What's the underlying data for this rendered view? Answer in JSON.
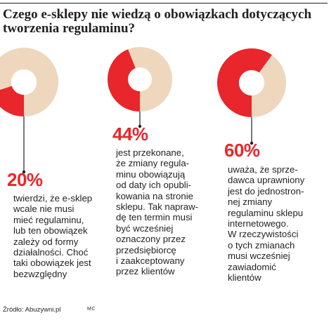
{
  "title": "Czego e-sklepy nie wiedzą o obowiązkach dotyczących tworzenia regulaminu?",
  "colors": {
    "accent": "#e8262b",
    "rest": "#eed7bd",
    "text": "#231f20"
  },
  "chart_data": {
    "type": "pie",
    "charts": [
      {
        "value": 20,
        "label": "20%",
        "text": "twierdzi, że e-sklep\nwcale nie musi\nmieć regulaminu,\nlub ten obowiązek\nzależy od formy\ndziałalności. Choć\ntaki obowiązek jest\nbezwzględny"
      },
      {
        "value": 44,
        "label": "44%",
        "text": "jest przekonane,\nże zmiany regula-\nminu obowiązują\nod daty ich opubli-\nkowania na stronie\nsklepu. Tak napraw-\ndę ten termin musi\nbyć wcześniej\noznaczony przez\nprzedsiębiorcę\ni zaakceptowany\nprzez klientów"
      },
      {
        "value": 60,
        "label": "60%",
        "text": "uważa, że sprze-\ndawca uprawniony\njest do jednostron-\nnej zmiany\nregulaminu sklepu\ninternetowego.\nW rzeczywistości\no tych zmianach\nmusi wcześniej\nzawiadomić\nklientów"
      }
    ]
  },
  "source": "Źródło: Abuzywni.pl",
  "author": "MC"
}
